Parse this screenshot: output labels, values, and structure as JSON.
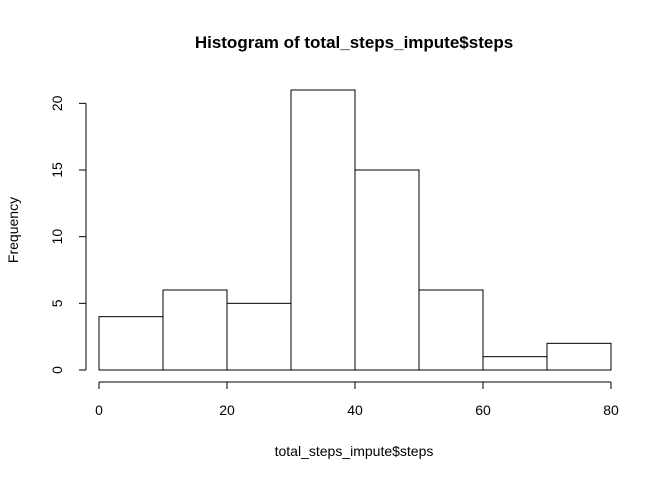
{
  "chart_data": {
    "type": "bar",
    "subtype": "histogram",
    "title": "Histogram of total_steps_impute$steps",
    "xlabel": "total_steps_impute$steps",
    "ylabel": "Frequency",
    "bins": [
      {
        "start": 0,
        "end": 10,
        "count": 4
      },
      {
        "start": 10,
        "end": 20,
        "count": 6
      },
      {
        "start": 20,
        "end": 30,
        "count": 5
      },
      {
        "start": 30,
        "end": 40,
        "count": 21
      },
      {
        "start": 40,
        "end": 50,
        "count": 15
      },
      {
        "start": 50,
        "end": 60,
        "count": 6
      },
      {
        "start": 60,
        "end": 70,
        "count": 1
      },
      {
        "start": 70,
        "end": 80,
        "count": 2
      }
    ],
    "xlim": [
      0,
      80
    ],
    "ylim": [
      0,
      21
    ],
    "xticks": [
      0,
      20,
      40,
      60,
      80
    ],
    "yticks": [
      0,
      5,
      10,
      15,
      20
    ],
    "grid": false,
    "bar_fill": "#ffffff",
    "bar_stroke": "#000000"
  }
}
